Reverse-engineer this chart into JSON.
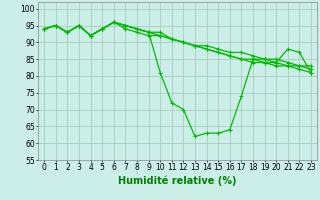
{
  "title": "",
  "xlabel": "Humidité relative (%)",
  "ylabel": "",
  "bg_color": "#cceee8",
  "grid_color": "#aaccbb",
  "line_color": "#00bb00",
  "marker": "+",
  "markersize": 3.5,
  "linewidth": 0.9,
  "xlim": [
    -0.5,
    23.5
  ],
  "ylim": [
    55,
    102
  ],
  "yticks": [
    55,
    60,
    65,
    70,
    75,
    80,
    85,
    90,
    95,
    100
  ],
  "xticks": [
    0,
    1,
    2,
    3,
    4,
    5,
    6,
    7,
    8,
    9,
    10,
    11,
    12,
    13,
    14,
    15,
    16,
    17,
    18,
    19,
    20,
    21,
    22,
    23
  ],
  "xlabel_fontsize": 7,
  "tick_fontsize": 5.5,
  "series": [
    [
      94,
      95,
      93,
      95,
      92,
      94,
      96,
      95,
      94,
      93,
      81,
      72,
      70,
      62,
      63,
      63,
      64,
      74,
      85,
      85,
      84,
      88,
      87,
      81
    ],
    [
      94,
      95,
      93,
      95,
      92,
      94,
      96,
      95,
      94,
      93,
      93,
      91,
      90,
      89,
      88,
      87,
      86,
      85,
      85,
      84,
      84,
      83,
      83,
      82
    ],
    [
      94,
      95,
      93,
      95,
      92,
      94,
      96,
      95,
      94,
      93,
      92,
      91,
      90,
      89,
      89,
      88,
      87,
      87,
      86,
      85,
      85,
      84,
      83,
      83
    ],
    [
      94,
      95,
      93,
      95,
      92,
      94,
      96,
      94,
      93,
      92,
      92,
      91,
      90,
      89,
      88,
      87,
      86,
      85,
      84,
      84,
      83,
      83,
      82,
      81
    ]
  ]
}
